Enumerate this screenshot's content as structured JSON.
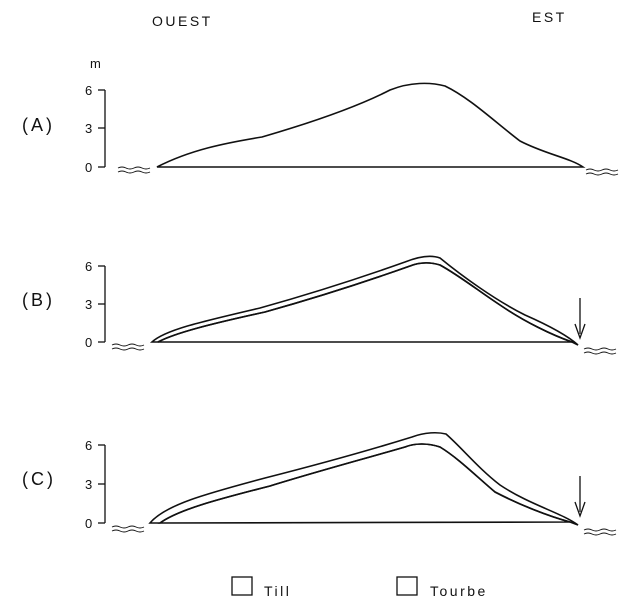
{
  "header": {
    "west": "OUEST",
    "east": "EST"
  },
  "axis": {
    "unit": "m",
    "ticks": [
      "6",
      "3",
      "0"
    ]
  },
  "panels": [
    {
      "label": "(A)",
      "peat": false,
      "arrow": false
    },
    {
      "label": "(B)",
      "peat": true,
      "arrow": true
    },
    {
      "label": "(C)",
      "peat": true,
      "arrow": true
    }
  ],
  "legend": {
    "till": "Till",
    "peat": "Tourbe"
  },
  "colors": {
    "ink": "#111111",
    "background": "#ffffff"
  }
}
